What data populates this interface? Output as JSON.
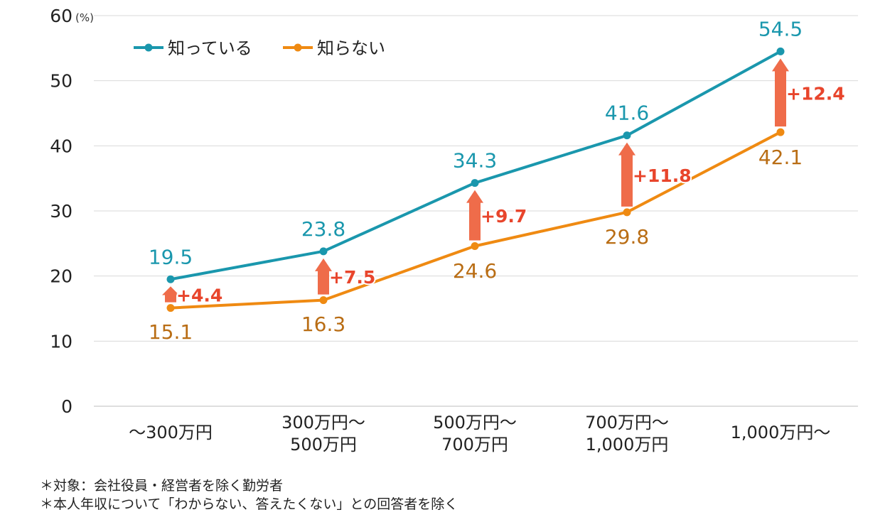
{
  "chart_data": {
    "type": "line",
    "ylim": [
      0,
      60
    ],
    "yticks": [
      0,
      10,
      20,
      30,
      40,
      50,
      60
    ],
    "ytick_labels": [
      "0",
      "10",
      "20",
      "30",
      "40",
      "50",
      "60"
    ],
    "y_unit": "(%)",
    "grid": true,
    "legend_position": "top-left",
    "categories": [
      [
        "～300万円"
      ],
      [
        "300万円～",
        "500万円"
      ],
      [
        "500万円～",
        "700万円"
      ],
      [
        "700万円～",
        "1,000万円"
      ],
      [
        "1,000万円～"
      ]
    ],
    "series": [
      {
        "name": "知っている",
        "color": "#1a97ad",
        "values": [
          19.5,
          23.8,
          34.3,
          41.6,
          54.5
        ],
        "value_labels": [
          "19.5",
          "23.8",
          "34.3",
          "41.6",
          "54.5"
        ]
      },
      {
        "name": "知らない",
        "color": "#ef8a12",
        "label_color": "#b96d14",
        "values": [
          15.1,
          16.3,
          24.6,
          29.8,
          42.1
        ],
        "value_labels": [
          "15.1",
          "16.3",
          "24.6",
          "29.8",
          "42.1"
        ]
      }
    ],
    "differences": {
      "color": "#ef6c4a",
      "label_color": "#e8452c",
      "values": [
        4.4,
        7.5,
        9.7,
        11.8,
        12.4
      ],
      "labels": [
        "+4.4",
        "+7.5",
        "+9.7",
        "+11.8",
        "+12.4"
      ]
    }
  },
  "footnotes": [
    "＊対象：会社役員・経営者を除く勤労者",
    "＊本人年収について「わからない、答えたくない」との回答者を除く"
  ]
}
